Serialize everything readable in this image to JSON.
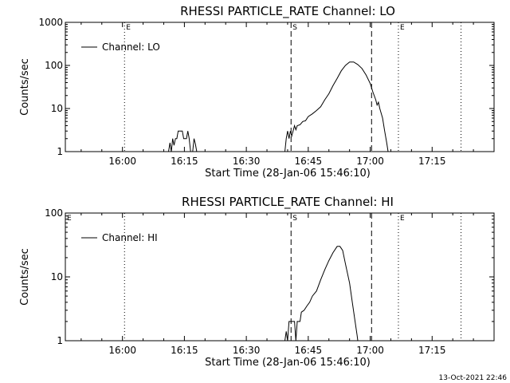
{
  "footer_timestamp": "13-Oct-2021 22:46",
  "chart_data": [
    {
      "type": "line",
      "title": "RHESSI PARTICLE_RATE Channel: LO",
      "xlabel": "Start Time (28-Jan-06 15:46:10)",
      "ylabel": "Counts/sec",
      "legend": "Channel: LO",
      "legend_position": "top-left",
      "y_scale": "log",
      "ylim": [
        1,
        1000
      ],
      "xlim": [
        "15:46:10",
        "17:30:00"
      ],
      "y_ticks": [
        {
          "value": 1,
          "label": "1"
        },
        {
          "value": 10,
          "label": "10"
        },
        {
          "value": 100,
          "label": "100"
        },
        {
          "value": 1000,
          "label": "1000"
        }
      ],
      "x_ticks": [
        {
          "value": "16:00",
          "label": "16:00"
        },
        {
          "value": "16:15",
          "label": "16:15"
        },
        {
          "value": "16:30",
          "label": "16:30"
        },
        {
          "value": "16:45",
          "label": "16:45"
        },
        {
          "value": "17:00",
          "label": "17:00"
        },
        {
          "value": "17:15",
          "label": "17:15"
        }
      ],
      "markers": [
        {
          "time": "16:00:30",
          "style": "dotted",
          "label": "E"
        },
        {
          "time": "16:40:50",
          "style": "dashed",
          "label": "S"
        },
        {
          "time": "17:00:20",
          "style": "dashed",
          "label": ""
        },
        {
          "time": "17:06:50",
          "style": "dotted",
          "label": "E"
        },
        {
          "time": "17:22:00",
          "style": "dotted",
          "label": ""
        }
      ],
      "series": [
        {
          "name": "Channel: LO",
          "segments": [
            [
              [
                "16:11:10",
                1
              ],
              [
                "16:11:30",
                1.6
              ],
              [
                "16:11:50",
                1
              ],
              [
                "16:12:10",
                2
              ],
              [
                "16:12:30",
                1.4
              ],
              [
                "16:12:50",
                2
              ],
              [
                "16:13:10",
                2
              ],
              [
                "16:13:30",
                3
              ],
              [
                "16:14:10",
                3
              ],
              [
                "16:14:30",
                3
              ],
              [
                "16:14:50",
                2
              ],
              [
                "16:15:10",
                2
              ],
              [
                "16:15:30",
                2
              ],
              [
                "16:15:50",
                3
              ],
              [
                "16:16:10",
                2
              ],
              [
                "16:16:30",
                1
              ],
              [
                "16:17:00",
                1
              ],
              [
                "16:17:20",
                2
              ],
              [
                "16:17:40",
                1.5
              ],
              [
                "16:18:00",
                1
              ]
            ],
            [
              [
                "16:39:20",
                1
              ],
              [
                "16:39:40",
                2
              ],
              [
                "16:40:00",
                3
              ],
              [
                "16:40:20",
                2
              ],
              [
                "16:40:40",
                3
              ],
              [
                "16:41:00",
                2.3
              ],
              [
                "16:41:20",
                3
              ],
              [
                "16:41:40",
                4
              ],
              [
                "16:42:00",
                3.2
              ],
              [
                "16:42:20",
                4
              ],
              [
                "16:43:00",
                4.2
              ],
              [
                "16:43:40",
                5
              ],
              [
                "16:44:20",
                5.2
              ],
              [
                "16:45:00",
                6.5
              ],
              [
                "16:46:00",
                7.5
              ],
              [
                "16:47:00",
                9
              ],
              [
                "16:48:00",
                11
              ],
              [
                "16:49:00",
                16
              ],
              [
                "16:50:00",
                22
              ],
              [
                "16:51:00",
                34
              ],
              [
                "16:52:00",
                50
              ],
              [
                "16:53:00",
                75
              ],
              [
                "16:54:00",
                100
              ],
              [
                "16:55:00",
                120
              ],
              [
                "16:56:00",
                120
              ],
              [
                "16:57:00",
                105
              ],
              [
                "16:58:00",
                85
              ],
              [
                "16:59:00",
                60
              ],
              [
                "17:00:00",
                38
              ],
              [
                "17:00:40",
                24
              ],
              [
                "17:01:20",
                16
              ],
              [
                "17:01:40",
                12
              ],
              [
                "17:02:00",
                14
              ],
              [
                "17:02:20",
                10
              ],
              [
                "17:03:00",
                6
              ],
              [
                "17:03:30",
                3
              ],
              [
                "17:04:00",
                1.6
              ],
              [
                "17:04:20",
                1
              ]
            ]
          ]
        }
      ]
    },
    {
      "type": "line",
      "title": "RHESSI PARTICLE_RATE Channel: HI",
      "xlabel": "Start Time (28-Jan-06 15:46:10)",
      "ylabel": "Counts/sec",
      "legend": "Channel: HI",
      "legend_position": "top-left",
      "y_scale": "log",
      "ylim": [
        1,
        100
      ],
      "xlim": [
        "15:46:10",
        "17:30:00"
      ],
      "y_ticks": [
        {
          "value": 1,
          "label": "1"
        },
        {
          "value": 10,
          "label": "10"
        },
        {
          "value": 100,
          "label": "100"
        }
      ],
      "x_ticks": [
        {
          "value": "16:00",
          "label": "16:00"
        },
        {
          "value": "16:15",
          "label": "16:15"
        },
        {
          "value": "16:30",
          "label": "16:30"
        },
        {
          "value": "16:45",
          "label": "16:45"
        },
        {
          "value": "17:00",
          "label": "17:00"
        },
        {
          "value": "17:15",
          "label": "17:15"
        }
      ],
      "markers": [
        {
          "time": "16:00:30",
          "style": "dotted",
          "label": ""
        },
        {
          "time": "16:40:50",
          "style": "dashed",
          "label": "S"
        },
        {
          "time": "17:00:20",
          "style": "dashed",
          "label": ""
        },
        {
          "time": "17:06:50",
          "style": "dotted",
          "label": "E"
        },
        {
          "time": "17:22:00",
          "style": "dotted",
          "label": ""
        }
      ],
      "corner_label": "E",
      "series": [
        {
          "name": "Channel: HI",
          "segments": [
            [
              [
                "16:39:20",
                1
              ],
              [
                "16:39:40",
                1.4
              ],
              [
                "16:40:00",
                1
              ],
              [
                "16:40:20",
                2
              ],
              [
                "16:40:40",
                2
              ],
              [
                "16:41:40",
                2
              ],
              [
                "16:42:00",
                1
              ],
              [
                "16:42:20",
                2
              ],
              [
                "16:43:00",
                2
              ],
              [
                "16:43:20",
                2.8
              ],
              [
                "16:44:00",
                3
              ],
              [
                "16:44:40",
                3.5
              ],
              [
                "16:45:20",
                4
              ],
              [
                "16:46:00",
                5
              ],
              [
                "16:47:00",
                6
              ],
              [
                "16:48:00",
                9
              ],
              [
                "16:49:00",
                13
              ],
              [
                "16:50:00",
                18
              ],
              [
                "16:51:00",
                24
              ],
              [
                "16:52:00",
                30
              ],
              [
                "16:52:40",
                30
              ],
              [
                "16:53:20",
                26
              ],
              [
                "16:54:00",
                16
              ],
              [
                "16:55:00",
                8
              ],
              [
                "16:55:40",
                4
              ],
              [
                "16:56:20",
                2
              ],
              [
                "16:56:50",
                1.2
              ],
              [
                "16:57:00",
                1
              ]
            ]
          ]
        }
      ]
    }
  ]
}
